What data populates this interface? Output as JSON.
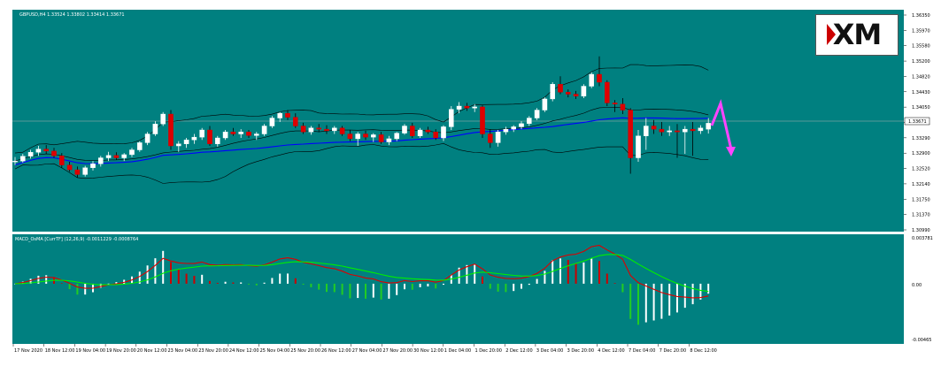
{
  "symbol_header": "GBPUSD,H4 1.33524 1.33802 1.33414 1.33671",
  "indicator_header": "MACD_OsMA [CurrTF] (12,26,9) -0.0011229 -0.0008764",
  "logo": {
    "text": "XM"
  },
  "colors": {
    "background": "#008080",
    "bull_candle": "#ffffff",
    "bear_candle": "#dd0000",
    "bollinger": "#000000",
    "ma": "#0000ff",
    "macd_main": "#dd0000",
    "macd_signal": "#00ee00",
    "hist_up": "#ffffff",
    "hist_down": "#22cc22",
    "hist_red": "#cc0000",
    "arrow": "#ff44ff"
  },
  "price_axis_labels": [
    "1.36350",
    "1.35970",
    "1.35580",
    "1.35200",
    "1.34820",
    "1.34430",
    "1.34050",
    "1.33671",
    "1.33290",
    "1.32900",
    "1.32520",
    "1.32140",
    "1.31750",
    "1.31370",
    "1.30990"
  ],
  "current_price_label": "1.33671",
  "macd_axis_labels": [
    "0.003781",
    "0.00",
    "-0.00465"
  ],
  "time_labels": [
    "17 Nov 2020",
    "18 Nov 12:00",
    "19 Nov 04:00",
    "19 Nov 20:00",
    "20 Nov 12:00",
    "23 Nov 04:00",
    "23 Nov 20:00",
    "24 Nov 12:00",
    "25 Nov 04:00",
    "25 Nov 20:00",
    "26 Nov 12:00",
    "27 Nov 04:00",
    "27 Nov 20:00",
    "30 Nov 12:00",
    "1 Dec 04:00",
    "1 Dec 20:00",
    "2 Dec 12:00",
    "3 Dec 04:00",
    "3 Dec 20:00",
    "4 Dec 12:00",
    "7 Dec 04:00",
    "7 Dec 20:00",
    "8 Dec 12:00"
  ],
  "chart_data": {
    "type": "candlestick",
    "instrument": "GBPUSD",
    "timeframe": "H4",
    "ylim": [
      1.3099,
      1.365
    ],
    "candles": [
      {
        "o": 1.327,
        "h": 1.3282,
        "l": 1.3262,
        "c": 1.3272
      },
      {
        "o": 1.3272,
        "h": 1.329,
        "l": 1.3268,
        "c": 1.3284
      },
      {
        "o": 1.3284,
        "h": 1.33,
        "l": 1.3278,
        "c": 1.3294
      },
      {
        "o": 1.3294,
        "h": 1.331,
        "l": 1.3285,
        "c": 1.3302
      },
      {
        "o": 1.3302,
        "h": 1.3312,
        "l": 1.329,
        "c": 1.3297
      },
      {
        "o": 1.3297,
        "h": 1.3305,
        "l": 1.328,
        "c": 1.3285
      },
      {
        "o": 1.3285,
        "h": 1.3292,
        "l": 1.3255,
        "c": 1.3262
      },
      {
        "o": 1.3262,
        "h": 1.327,
        "l": 1.3245,
        "c": 1.325
      },
      {
        "o": 1.325,
        "h": 1.3258,
        "l": 1.323,
        "c": 1.3238
      },
      {
        "o": 1.3238,
        "h": 1.326,
        "l": 1.3233,
        "c": 1.3255
      },
      {
        "o": 1.3255,
        "h": 1.3272,
        "l": 1.3248,
        "c": 1.3265
      },
      {
        "o": 1.3265,
        "h": 1.3285,
        "l": 1.3258,
        "c": 1.328
      },
      {
        "o": 1.328,
        "h": 1.3295,
        "l": 1.3272,
        "c": 1.3286
      },
      {
        "o": 1.3286,
        "h": 1.3294,
        "l": 1.3275,
        "c": 1.328
      },
      {
        "o": 1.328,
        "h": 1.3292,
        "l": 1.3272,
        "c": 1.3288
      },
      {
        "o": 1.3288,
        "h": 1.3305,
        "l": 1.3282,
        "c": 1.33
      },
      {
        "o": 1.33,
        "h": 1.3322,
        "l": 1.3295,
        "c": 1.3318
      },
      {
        "o": 1.3318,
        "h": 1.3345,
        "l": 1.3312,
        "c": 1.334
      },
      {
        "o": 1.334,
        "h": 1.3372,
        "l": 1.3335,
        "c": 1.3365
      },
      {
        "o": 1.3365,
        "h": 1.3395,
        "l": 1.336,
        "c": 1.339
      },
      {
        "o": 1.339,
        "h": 1.34,
        "l": 1.33,
        "c": 1.331
      },
      {
        "o": 1.331,
        "h": 1.3322,
        "l": 1.3295,
        "c": 1.3315
      },
      {
        "o": 1.3315,
        "h": 1.333,
        "l": 1.3305,
        "c": 1.3325
      },
      {
        "o": 1.3325,
        "h": 1.334,
        "l": 1.3315,
        "c": 1.3332
      },
      {
        "o": 1.3332,
        "h": 1.3355,
        "l": 1.3325,
        "c": 1.335
      },
      {
        "o": 1.335,
        "h": 1.336,
        "l": 1.331,
        "c": 1.3315
      },
      {
        "o": 1.3315,
        "h": 1.3335,
        "l": 1.3308,
        "c": 1.333
      },
      {
        "o": 1.333,
        "h": 1.335,
        "l": 1.3325,
        "c": 1.3345
      },
      {
        "o": 1.3345,
        "h": 1.3355,
        "l": 1.3335,
        "c": 1.334
      },
      {
        "o": 1.334,
        "h": 1.3352,
        "l": 1.333,
        "c": 1.3345
      },
      {
        "o": 1.3345,
        "h": 1.335,
        "l": 1.333,
        "c": 1.3336
      },
      {
        "o": 1.3336,
        "h": 1.3345,
        "l": 1.3325,
        "c": 1.334
      },
      {
        "o": 1.334,
        "h": 1.3365,
        "l": 1.3335,
        "c": 1.336
      },
      {
        "o": 1.336,
        "h": 1.3385,
        "l": 1.3355,
        "c": 1.338
      },
      {
        "o": 1.338,
        "h": 1.3395,
        "l": 1.337,
        "c": 1.3392
      },
      {
        "o": 1.3392,
        "h": 1.34,
        "l": 1.3375,
        "c": 1.3382
      },
      {
        "o": 1.3382,
        "h": 1.3392,
        "l": 1.3355,
        "c": 1.336
      },
      {
        "o": 1.336,
        "h": 1.3368,
        "l": 1.334,
        "c": 1.3345
      },
      {
        "o": 1.3345,
        "h": 1.336,
        "l": 1.3338,
        "c": 1.3355
      },
      {
        "o": 1.3355,
        "h": 1.3365,
        "l": 1.3345,
        "c": 1.3352
      },
      {
        "o": 1.3352,
        "h": 1.3362,
        "l": 1.334,
        "c": 1.3348
      },
      {
        "o": 1.3348,
        "h": 1.336,
        "l": 1.334,
        "c": 1.3355
      },
      {
        "o": 1.3355,
        "h": 1.336,
        "l": 1.3335,
        "c": 1.334
      },
      {
        "o": 1.334,
        "h": 1.335,
        "l": 1.3322,
        "c": 1.3328
      },
      {
        "o": 1.3328,
        "h": 1.3345,
        "l": 1.331,
        "c": 1.334
      },
      {
        "o": 1.334,
        "h": 1.3348,
        "l": 1.3325,
        "c": 1.3332
      },
      {
        "o": 1.3332,
        "h": 1.3342,
        "l": 1.332,
        "c": 1.3338
      },
      {
        "o": 1.3338,
        "h": 1.3345,
        "l": 1.3315,
        "c": 1.332
      },
      {
        "o": 1.332,
        "h": 1.3335,
        "l": 1.3312,
        "c": 1.3328
      },
      {
        "o": 1.3328,
        "h": 1.3345,
        "l": 1.3322,
        "c": 1.3342
      },
      {
        "o": 1.3342,
        "h": 1.3365,
        "l": 1.3338,
        "c": 1.336
      },
      {
        "o": 1.336,
        "h": 1.3368,
        "l": 1.333,
        "c": 1.3335
      },
      {
        "o": 1.3335,
        "h": 1.3355,
        "l": 1.333,
        "c": 1.335
      },
      {
        "o": 1.335,
        "h": 1.3358,
        "l": 1.334,
        "c": 1.3345
      },
      {
        "o": 1.3345,
        "h": 1.3352,
        "l": 1.3325,
        "c": 1.333
      },
      {
        "o": 1.333,
        "h": 1.3362,
        "l": 1.3322,
        "c": 1.3358
      },
      {
        "o": 1.3358,
        "h": 1.341,
        "l": 1.335,
        "c": 1.3402
      },
      {
        "o": 1.3402,
        "h": 1.342,
        "l": 1.3392,
        "c": 1.341
      },
      {
        "o": 1.341,
        "h": 1.3418,
        "l": 1.3398,
        "c": 1.3405
      },
      {
        "o": 1.3405,
        "h": 1.3415,
        "l": 1.3395,
        "c": 1.3408
      },
      {
        "o": 1.3408,
        "h": 1.3412,
        "l": 1.333,
        "c": 1.334
      },
      {
        "o": 1.334,
        "h": 1.3352,
        "l": 1.3305,
        "c": 1.3318
      },
      {
        "o": 1.3318,
        "h": 1.335,
        "l": 1.3308,
        "c": 1.3345
      },
      {
        "o": 1.3345,
        "h": 1.3358,
        "l": 1.3338,
        "c": 1.3352
      },
      {
        "o": 1.3352,
        "h": 1.3362,
        "l": 1.3345,
        "c": 1.3358
      },
      {
        "o": 1.3358,
        "h": 1.3372,
        "l": 1.3352,
        "c": 1.3366
      },
      {
        "o": 1.3366,
        "h": 1.3385,
        "l": 1.336,
        "c": 1.338
      },
      {
        "o": 1.338,
        "h": 1.3405,
        "l": 1.3375,
        "c": 1.34
      },
      {
        "o": 1.34,
        "h": 1.3432,
        "l": 1.3395,
        "c": 1.3428
      },
      {
        "o": 1.3428,
        "h": 1.347,
        "l": 1.3422,
        "c": 1.3465
      },
      {
        "o": 1.3465,
        "h": 1.3485,
        "l": 1.344,
        "c": 1.3445
      },
      {
        "o": 1.3445,
        "h": 1.3452,
        "l": 1.3432,
        "c": 1.344
      },
      {
        "o": 1.344,
        "h": 1.3448,
        "l": 1.3428,
        "c": 1.3435
      },
      {
        "o": 1.3435,
        "h": 1.3465,
        "l": 1.343,
        "c": 1.346
      },
      {
        "o": 1.346,
        "h": 1.3495,
        "l": 1.3455,
        "c": 1.349
      },
      {
        "o": 1.349,
        "h": 1.3535,
        "l": 1.346,
        "c": 1.347
      },
      {
        "o": 1.347,
        "h": 1.3475,
        "l": 1.341,
        "c": 1.3418
      },
      {
        "o": 1.3418,
        "h": 1.3425,
        "l": 1.3395,
        "c": 1.3415
      },
      {
        "o": 1.3415,
        "h": 1.343,
        "l": 1.339,
        "c": 1.34
      },
      {
        "o": 1.34,
        "h": 1.3405,
        "l": 1.324,
        "c": 1.328
      },
      {
        "o": 1.328,
        "h": 1.335,
        "l": 1.327,
        "c": 1.3335
      },
      {
        "o": 1.3335,
        "h": 1.338,
        "l": 1.33,
        "c": 1.336
      },
      {
        "o": 1.336,
        "h": 1.3375,
        "l": 1.334,
        "c": 1.3352
      },
      {
        "o": 1.3352,
        "h": 1.337,
        "l": 1.3335,
        "c": 1.3345
      },
      {
        "o": 1.3345,
        "h": 1.336,
        "l": 1.3335,
        "c": 1.3348
      },
      {
        "o": 1.3348,
        "h": 1.3365,
        "l": 1.328,
        "c": 1.3345
      },
      {
        "o": 1.3345,
        "h": 1.336,
        "l": 1.329,
        "c": 1.3352
      },
      {
        "o": 1.3352,
        "h": 1.337,
        "l": 1.3285,
        "c": 1.3348
      },
      {
        "o": 1.3348,
        "h": 1.3362,
        "l": 1.334,
        "c": 1.3355
      },
      {
        "o": 1.3352,
        "h": 1.338,
        "l": 1.3341,
        "c": 1.3367
      }
    ],
    "current_price": 1.33671,
    "macd_ylim": [
      -0.00465,
      0.003781
    ]
  }
}
